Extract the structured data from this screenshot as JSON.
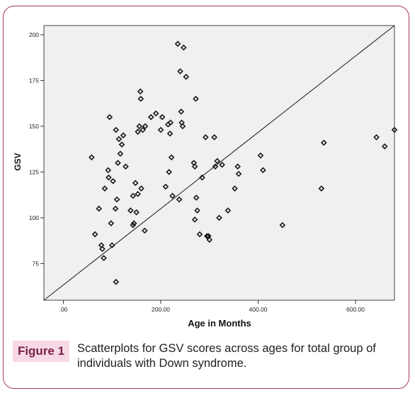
{
  "figure": {
    "badge": "Figure 1",
    "caption": "Scatterplots for GSV scores across ages for total group of individuals with Down syndrome."
  },
  "chart_data": {
    "type": "scatter",
    "xlabel": "Age in Months",
    "ylabel": "GSV",
    "xlim": [
      -40,
      680
    ],
    "ylim": [
      55,
      205
    ],
    "x_ticks": [
      0,
      200,
      400,
      600
    ],
    "x_tick_labels": [
      ".00",
      "200.00",
      "400.00",
      "600.00"
    ],
    "y_ticks": [
      75,
      100,
      125,
      150,
      175,
      200
    ],
    "y_tick_labels": [
      "75",
      "100",
      "125",
      "150",
      "175",
      "200"
    ],
    "grid": false,
    "reference_line": {
      "from": [
        -40,
        55
      ],
      "to": [
        680,
        205
      ]
    },
    "colors": {
      "plot_bg": "#f0f0f0",
      "marker": "#1a1a1a",
      "line": "#1a1a1a"
    },
    "points": [
      [
        58,
        133
      ],
      [
        65,
        91
      ],
      [
        73,
        105
      ],
      [
        78,
        85
      ],
      [
        80,
        83
      ],
      [
        83,
        78
      ],
      [
        85,
        116
      ],
      [
        92,
        126
      ],
      [
        93,
        122
      ],
      [
        95,
        155
      ],
      [
        98,
        97
      ],
      [
        100,
        85
      ],
      [
        102,
        120
      ],
      [
        107,
        105
      ],
      [
        108,
        148
      ],
      [
        108,
        65
      ],
      [
        110,
        110
      ],
      [
        112,
        130
      ],
      [
        114,
        143
      ],
      [
        117,
        135
      ],
      [
        120,
        140
      ],
      [
        123,
        145
      ],
      [
        128,
        128
      ],
      [
        138,
        104
      ],
      [
        143,
        112
      ],
      [
        143,
        96
      ],
      [
        145,
        97
      ],
      [
        148,
        119
      ],
      [
        150,
        103
      ],
      [
        153,
        113
      ],
      [
        153,
        147
      ],
      [
        156,
        150
      ],
      [
        158,
        169
      ],
      [
        159,
        165
      ],
      [
        160,
        116
      ],
      [
        163,
        148
      ],
      [
        167,
        93
      ],
      [
        168,
        150
      ],
      [
        180,
        155
      ],
      [
        190,
        157
      ],
      [
        200,
        148
      ],
      [
        203,
        155
      ],
      [
        210,
        117
      ],
      [
        215,
        151
      ],
      [
        217,
        125
      ],
      [
        219,
        146
      ],
      [
        220,
        152
      ],
      [
        222,
        133
      ],
      [
        224,
        112
      ],
      [
        235,
        195
      ],
      [
        238,
        110
      ],
      [
        240,
        180
      ],
      [
        242,
        158
      ],
      [
        243,
        152
      ],
      [
        245,
        150
      ],
      [
        247,
        193
      ],
      [
        252,
        177
      ],
      [
        268,
        130
      ],
      [
        270,
        128
      ],
      [
        270,
        99
      ],
      [
        272,
        165
      ],
      [
        273,
        111
      ],
      [
        275,
        104
      ],
      [
        280,
        91
      ],
      [
        285,
        122
      ],
      [
        292,
        144
      ],
      [
        295,
        90
      ],
      [
        298,
        90
      ],
      [
        300,
        88
      ],
      [
        310,
        144
      ],
      [
        312,
        128
      ],
      [
        316,
        131
      ],
      [
        320,
        100
      ],
      [
        326,
        129
      ],
      [
        338,
        104
      ],
      [
        352,
        116
      ],
      [
        358,
        128
      ],
      [
        360,
        124
      ],
      [
        405,
        134
      ],
      [
        410,
        126
      ],
      [
        450,
        96
      ],
      [
        530,
        116
      ],
      [
        535,
        141
      ],
      [
        643,
        144
      ],
      [
        660,
        139
      ],
      [
        680,
        148
      ]
    ]
  }
}
